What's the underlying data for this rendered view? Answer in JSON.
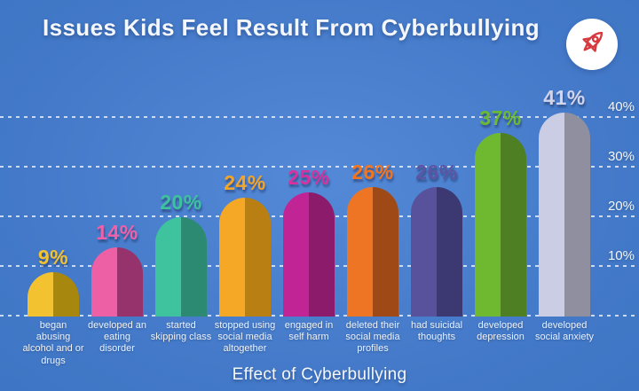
{
  "title": "Issues Kids Feel Result From Cyberbullying",
  "header": {
    "brand_icon": "rocket-icon",
    "brand_icon_color": "#d6393e"
  },
  "chart_data": {
    "type": "bar",
    "title": "Issues Kids Feel Result From Cyberbullying",
    "xlabel": "Effect of Cyberbullying",
    "ylabel": "",
    "unit": "%",
    "ylim": [
      0,
      45
    ],
    "grid": "horizontal dashed white lines at 10/20/30/40 and baseline",
    "legend": "none",
    "yticks": [
      {
        "label": "10%",
        "value": 10
      },
      {
        "label": "20%",
        "value": 20
      },
      {
        "label": "30%",
        "value": 30
      },
      {
        "label": "40%",
        "value": 40
      }
    ],
    "categories": [
      "began abusing alcohol and or drugs",
      "developed an eating disorder",
      "started skipping class",
      "stopped using social media altogether",
      "engaged in self harm",
      "deleted their social media profiles",
      "had suicidal thoughts",
      "developed depression",
      "developed social anxiety"
    ],
    "values": [
      9,
      14,
      20,
      24,
      25,
      26,
      26,
      37,
      41
    ],
    "bars": [
      {
        "category_lines": "began abusing\nalcohol and or\ndrugs",
        "value": 9,
        "label": "9%",
        "color_left": "#f3c231",
        "color_right": "#a8870f",
        "label_color": "#f3c231"
      },
      {
        "category_lines": "developed an\neating disorder",
        "value": 14,
        "label": "14%",
        "color_left": "#ee60a5",
        "color_right": "#96336c",
        "label_color": "#f161a8"
      },
      {
        "category_lines": "started\nskipping class",
        "value": 20,
        "label": "20%",
        "color_left": "#3ec39e",
        "color_right": "#2b8a71",
        "label_color": "#3ec29d"
      },
      {
        "category_lines": "stopped using\nsocial media\naltogether",
        "value": 24,
        "label": "24%",
        "color_left": "#f4a826",
        "color_right": "#ba7f12",
        "label_color": "#f2a52b"
      },
      {
        "category_lines": "engaged in\nself harm",
        "value": 25,
        "label": "25%",
        "color_left": "#c02495",
        "color_right": "#8c1c6b",
        "label_color": "#d7309f"
      },
      {
        "category_lines": "deleted their\nsocial media\nprofiles",
        "value": 26,
        "label": "26%",
        "color_left": "#ee7524",
        "color_right": "#9f4a16",
        "label_color": "#f3761f"
      },
      {
        "category_lines": "had suicidal\nthoughts",
        "value": 26,
        "label": "26%",
        "color_left": "#57529b",
        "color_right": "#3c3872",
        "label_color": "#5b55a4"
      },
      {
        "category_lines": "developed\ndepression",
        "value": 37,
        "label": "37%",
        "color_left": "#6fb931",
        "color_right": "#4e7f22",
        "label_color": "#6cba30"
      },
      {
        "category_lines": "developed\nsocial anxiety",
        "value": 41,
        "label": "41%",
        "color_left": "#cbcde4",
        "color_right": "#8f8f9f",
        "label_color": "#d3d5ec"
      }
    ]
  },
  "colors": {
    "background_center": "#5389d6",
    "background_edge": "#3a74c2",
    "text": "#ffffff",
    "gridline": "#ffffff"
  }
}
